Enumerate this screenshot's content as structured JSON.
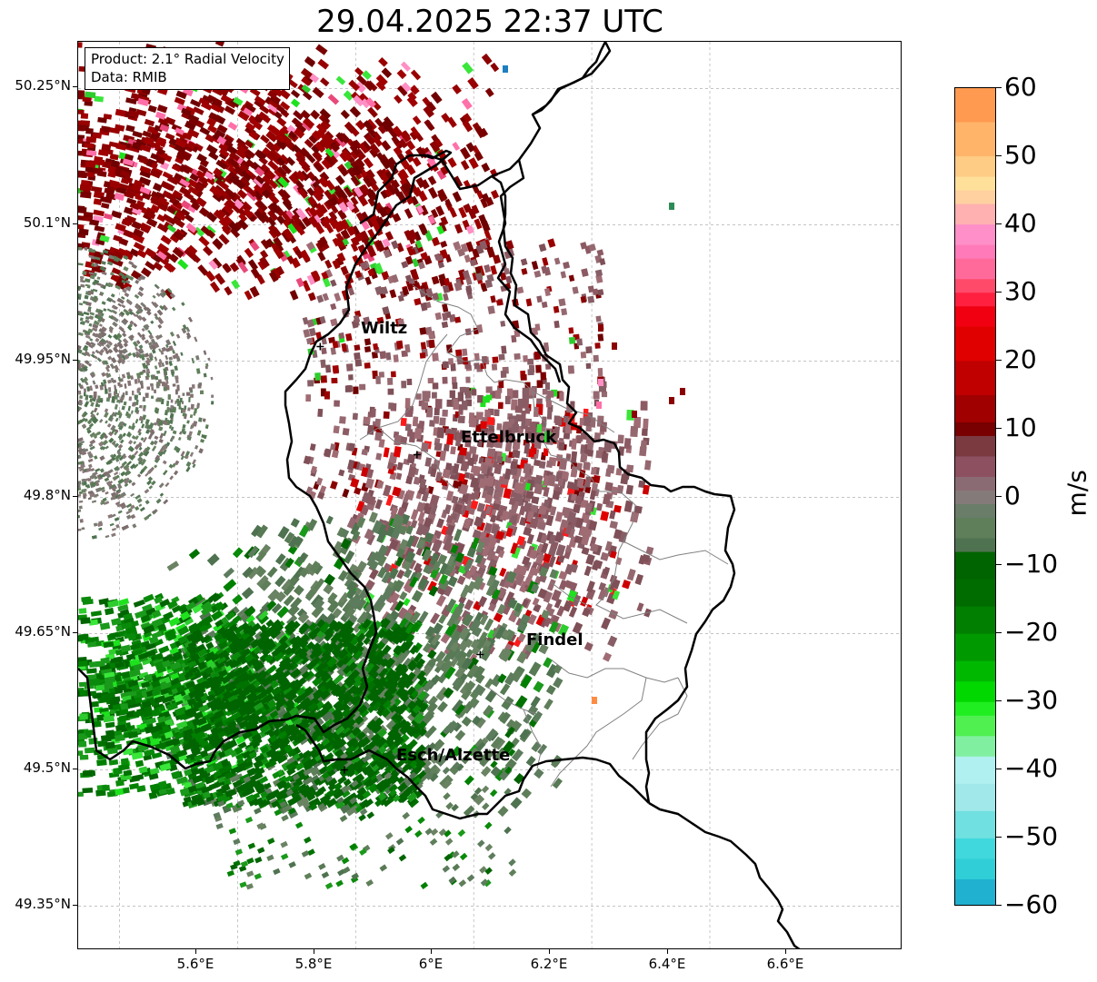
{
  "title": "29.04.2025 22:37 UTC",
  "info": {
    "product": "Product: 2.1° Radial Velocity",
    "source": "Data: RMIB"
  },
  "y_axis_labels": [
    "50.25°N",
    "50.1°N",
    "49.95°N",
    "49.8°N",
    "49.65°N",
    "49.5°N",
    "49.35°N"
  ],
  "x_axis_labels": [
    "5.6°E",
    "5.8°E",
    "6°E",
    "6.2°E",
    "6.4°E",
    "6.6°E"
  ],
  "cities": [
    {
      "name": "Wiltz",
      "lon": 5.94,
      "lat": 49.966
    },
    {
      "name": "Ettelbruck",
      "lon": 6.104,
      "lat": 49.847
    },
    {
      "name": "Findel",
      "lon": 6.211,
      "lat": 49.627
    },
    {
      "name": "Esch/Alzette",
      "lon": 5.981,
      "lat": 49.5
    }
  ],
  "radar": {
    "lon": 5.505,
    "lat": 49.914
  },
  "colorbar": {
    "unit": "m/s",
    "min": -60,
    "max": 60,
    "ticks": [
      "60",
      "50",
      "40",
      "30",
      "20",
      "10",
      "0",
      "−10",
      "−20",
      "−30",
      "−40",
      "−50",
      "−60"
    ]
  },
  "colors": {
    "receding_strong": "#8b0000",
    "receding_light": "#8c5a63",
    "zero": "#7f7f7f",
    "approaching_light": "#5a7a5a",
    "approaching_strong": "#006400",
    "radar_marker": "#ff0000"
  }
}
